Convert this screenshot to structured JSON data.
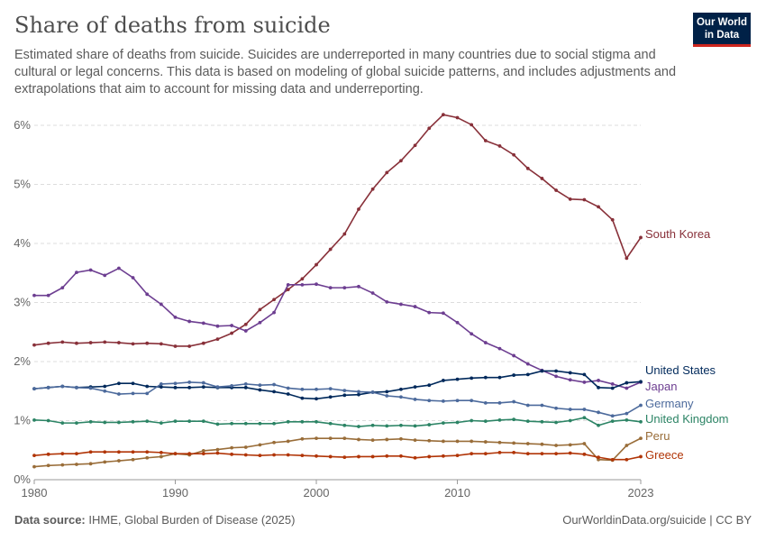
{
  "header": {
    "title": "Share of deaths from suicide",
    "subtitle": "Estimated share of deaths from suicide. Suicides are underreported in many countries due to social stigma and cultural or legal concerns. This data is based on modeling of global suicide patterns, and includes adjustments and extrapolations that aim to account for missing data and underreporting.",
    "logo": "Our World in Data"
  },
  "footer": {
    "source_label": "Data source:",
    "source": "IHME, Global Burden of Disease (2025)",
    "link": "OurWorldinData.org/suicide | CC BY"
  },
  "chart_data": {
    "type": "line",
    "title": "Share of deaths from suicide",
    "xlim": [
      1980,
      2023
    ],
    "ylim": [
      0,
      6
    ],
    "grid": "horizontal dashed",
    "legend": "inline-right",
    "x_ticks": [
      "1980",
      "1990",
      "2000",
      "2010",
      "2023"
    ],
    "y_ticks": [
      "0%",
      "1%",
      "2%",
      "3%",
      "4%",
      "5%",
      "6%"
    ],
    "x_start": 1980,
    "series": [
      {
        "name": "South Korea",
        "color": "#883039",
        "values": [
          2.28,
          2.31,
          2.33,
          2.31,
          2.32,
          2.33,
          2.32,
          2.3,
          2.31,
          2.3,
          2.26,
          2.26,
          2.31,
          2.38,
          2.48,
          2.63,
          2.88,
          3.05,
          3.22,
          3.4,
          3.64,
          3.9,
          4.16,
          4.58,
          4.92,
          5.2,
          5.4,
          5.66,
          5.95,
          6.18,
          6.13,
          6.01,
          5.74,
          5.65,
          5.5,
          5.27,
          5.1,
          4.9,
          4.75,
          4.74,
          4.62,
          4.4,
          3.75,
          4.1
        ]
      },
      {
        "name": "Japan",
        "color": "#6d3e91",
        "values": [
          3.12,
          3.12,
          3.25,
          3.51,
          3.55,
          3.46,
          3.58,
          3.42,
          3.14,
          2.97,
          2.75,
          2.68,
          2.65,
          2.6,
          2.61,
          2.52,
          2.66,
          2.83,
          3.3,
          3.3,
          3.31,
          3.25,
          3.25,
          3.27,
          3.16,
          3.01,
          2.97,
          2.93,
          2.83,
          2.82,
          2.66,
          2.47,
          2.32,
          2.22,
          2.1,
          1.96,
          1.85,
          1.75,
          1.69,
          1.65,
          1.68,
          1.62,
          1.55,
          1.65
        ]
      },
      {
        "name": "United States",
        "color": "#00295b",
        "values": [
          1.54,
          1.56,
          1.58,
          1.56,
          1.57,
          1.58,
          1.63,
          1.63,
          1.58,
          1.57,
          1.56,
          1.56,
          1.57,
          1.56,
          1.56,
          1.56,
          1.52,
          1.49,
          1.45,
          1.38,
          1.37,
          1.4,
          1.43,
          1.44,
          1.48,
          1.49,
          1.53,
          1.57,
          1.6,
          1.68,
          1.7,
          1.72,
          1.73,
          1.73,
          1.77,
          1.78,
          1.84,
          1.84,
          1.81,
          1.78,
          1.56,
          1.55,
          1.64,
          1.66
        ]
      },
      {
        "name": "Germany",
        "color": "#4c6a9c",
        "values": [
          1.54,
          1.56,
          1.58,
          1.56,
          1.55,
          1.5,
          1.45,
          1.46,
          1.46,
          1.62,
          1.63,
          1.65,
          1.64,
          1.57,
          1.59,
          1.62,
          1.6,
          1.61,
          1.55,
          1.53,
          1.53,
          1.54,
          1.51,
          1.49,
          1.48,
          1.42,
          1.4,
          1.36,
          1.34,
          1.33,
          1.34,
          1.34,
          1.3,
          1.3,
          1.32,
          1.26,
          1.26,
          1.21,
          1.19,
          1.19,
          1.14,
          1.08,
          1.12,
          1.26
        ]
      },
      {
        "name": "United Kingdom",
        "color": "#2c8465",
        "values": [
          1.01,
          1.0,
          0.96,
          0.96,
          0.98,
          0.97,
          0.97,
          0.98,
          0.99,
          0.96,
          0.99,
          0.99,
          0.99,
          0.94,
          0.95,
          0.95,
          0.95,
          0.95,
          0.98,
          0.98,
          0.98,
          0.95,
          0.92,
          0.9,
          0.92,
          0.91,
          0.92,
          0.91,
          0.93,
          0.96,
          0.97,
          1.0,
          0.99,
          1.01,
          1.02,
          0.99,
          0.98,
          0.97,
          1.0,
          1.05,
          0.92,
          0.99,
          1.01,
          0.98
        ]
      },
      {
        "name": "Peru",
        "color": "#996d39",
        "values": [
          0.22,
          0.24,
          0.25,
          0.26,
          0.27,
          0.3,
          0.32,
          0.34,
          0.37,
          0.39,
          0.44,
          0.42,
          0.49,
          0.51,
          0.54,
          0.55,
          0.59,
          0.63,
          0.65,
          0.69,
          0.7,
          0.7,
          0.7,
          0.68,
          0.67,
          0.68,
          0.69,
          0.67,
          0.66,
          0.65,
          0.65,
          0.65,
          0.64,
          0.63,
          0.62,
          0.61,
          0.6,
          0.58,
          0.59,
          0.61,
          0.34,
          0.33,
          0.58,
          0.7
        ]
      },
      {
        "name": "Greece",
        "color": "#b13507",
        "values": [
          0.41,
          0.43,
          0.44,
          0.44,
          0.47,
          0.47,
          0.47,
          0.47,
          0.47,
          0.46,
          0.44,
          0.44,
          0.44,
          0.45,
          0.43,
          0.42,
          0.41,
          0.42,
          0.42,
          0.41,
          0.4,
          0.39,
          0.38,
          0.39,
          0.39,
          0.4,
          0.4,
          0.37,
          0.39,
          0.4,
          0.41,
          0.44,
          0.44,
          0.46,
          0.46,
          0.44,
          0.44,
          0.44,
          0.45,
          0.43,
          0.38,
          0.34,
          0.34,
          0.39
        ]
      }
    ]
  }
}
